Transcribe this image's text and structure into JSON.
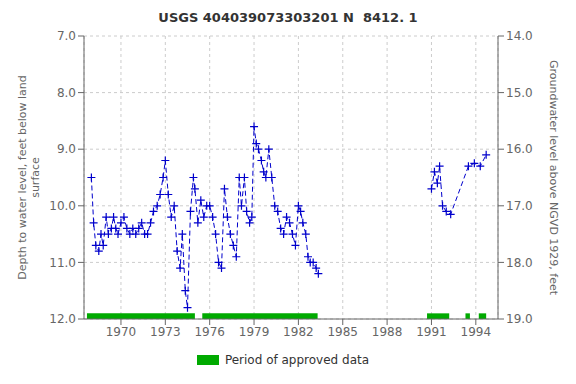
{
  "chart_data": {
    "type": "line",
    "title": "USGS 404039073303201 N  8412. 1",
    "ylabel": "Depth to water level, feet below land\nsurface",
    "y2label": "Groundwater level above NGVD 1929, feet",
    "xlim": [
      1967.5,
      1995.5
    ],
    "xticks": [
      1970,
      1973,
      1976,
      1979,
      1982,
      1985,
      1988,
      1991,
      1994
    ],
    "ylim": [
      12.0,
      7.0
    ],
    "yticks": [
      {
        "value": 7.0,
        "label": "7.0"
      },
      {
        "value": 8.0,
        "label": "8.0"
      },
      {
        "value": 9.0,
        "label": "9.0"
      },
      {
        "value": 10.0,
        "label": "10.0"
      },
      {
        "value": 11.0,
        "label": "11.0"
      },
      {
        "value": 12.0,
        "label": "12.0"
      }
    ],
    "y2lim": [
      19.0,
      14.0
    ],
    "y2ticks": [
      {
        "value": 19.0,
        "label": "19.0"
      },
      {
        "value": 18.0,
        "label": "18.0"
      },
      {
        "value": 17.0,
        "label": "17.0"
      },
      {
        "value": 16.0,
        "label": "16.0"
      },
      {
        "value": 15.0,
        "label": "15.0"
      },
      {
        "value": 14.0,
        "label": "14.0"
      }
    ],
    "grid": true,
    "series": [
      {
        "x": [
          1968.0,
          1968.15,
          1968.3,
          1968.5,
          1968.65,
          1968.8,
          1969.0,
          1969.15,
          1969.35,
          1969.5,
          1969.65,
          1969.8,
          1970.0,
          1970.2,
          1970.4,
          1970.6,
          1970.8,
          1971.0,
          1971.2,
          1971.4,
          1971.6,
          1971.8,
          1972.0,
          1972.2,
          1972.45,
          1972.65,
          1972.85,
          1973.0,
          1973.2,
          1973.4,
          1973.6,
          1973.8,
          1974.0,
          1974.15,
          1974.35,
          1974.5,
          1974.7,
          1974.9,
          1975.0,
          1975.2,
          1975.4,
          1975.6,
          1975.8,
          1976.0,
          1976.2,
          1976.4,
          1976.6,
          1976.8,
          1977.0,
          1977.2,
          1977.4,
          1977.6,
          1977.8,
          1978.0,
          1978.15,
          1978.35,
          1978.5,
          1978.7,
          1978.85,
          1979.0,
          1979.15,
          1979.3,
          1979.5,
          1979.65,
          1979.8,
          1980.0,
          1980.2,
          1980.4,
          1980.6,
          1980.8,
          1981.0,
          1981.2,
          1981.4,
          1981.6,
          1981.8,
          1982.0,
          1982.15,
          1982.3,
          1982.5,
          1982.65,
          1982.8,
          1983.0,
          1983.2,
          1983.35
        ],
        "values": [
          9.5,
          10.3,
          10.7,
          10.8,
          10.5,
          10.7,
          10.2,
          10.5,
          10.4,
          10.2,
          10.4,
          10.5,
          10.3,
          10.2,
          10.4,
          10.5,
          10.4,
          10.5,
          10.4,
          10.3,
          10.5,
          10.5,
          10.3,
          10.1,
          10.0,
          9.8,
          9.5,
          9.2,
          9.8,
          10.2,
          10.0,
          10.8,
          11.1,
          10.5,
          11.5,
          11.8,
          10.1,
          9.5,
          9.7,
          10.3,
          9.9,
          10.2,
          10.0,
          10.0,
          10.2,
          10.5,
          11.0,
          11.1,
          9.7,
          10.2,
          10.5,
          10.7,
          10.9,
          9.5,
          10.0,
          9.5,
          10.1,
          10.3,
          10.2,
          8.6,
          8.9,
          9.0,
          9.2,
          9.4,
          9.5,
          9.0,
          9.5,
          10.0,
          10.1,
          10.4,
          10.5,
          10.2,
          10.3,
          10.5,
          10.7,
          10.0,
          10.1,
          10.3,
          10.5,
          10.9,
          11.0,
          11.0,
          11.1,
          11.2
        ],
        "color": "#0000cc",
        "marker": "plus",
        "line_style": "dashed"
      },
      {
        "x": [
          1991.0,
          1991.2,
          1991.4,
          1991.55,
          1991.75,
          1992.0,
          1992.3,
          1993.5,
          1993.9,
          1994.3,
          1994.7
        ],
        "values": [
          9.7,
          9.4,
          9.6,
          9.3,
          10.0,
          10.1,
          10.15,
          9.3,
          9.25,
          9.3,
          9.1
        ],
        "color": "#0000cc",
        "marker": "plus",
        "line_style": "dashed"
      },
      {
        "name": "Period of approved data",
        "type": "range",
        "color": "#00aa00",
        "ranges": [
          [
            1967.7,
            1975.0
          ],
          [
            1975.5,
            1983.3
          ],
          [
            1990.7,
            1992.2
          ],
          [
            1993.3,
            1993.6
          ],
          [
            1994.2,
            1994.7
          ]
        ]
      }
    ]
  }
}
